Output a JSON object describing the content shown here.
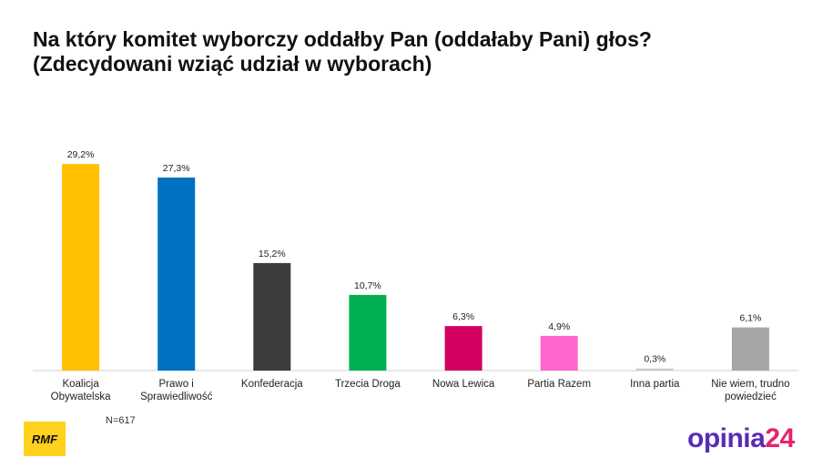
{
  "title": {
    "line1": "Na który komitet wyborczy oddałby Pan (oddałaby Pani) głos?",
    "line2": "(Zdecydowani wziąć udział w wyborach)"
  },
  "note": "N=617",
  "logos": {
    "left": "RMF",
    "right_part1": "opinia",
    "right_part2": "24"
  },
  "chart_data": {
    "type": "bar",
    "categories": [
      [
        "Koalicja",
        "Obywatelska"
      ],
      [
        "Prawo i",
        "Sprawiedliwość"
      ],
      [
        "Konfederacja"
      ],
      [
        "Trzecia Droga"
      ],
      [
        "Nowa Lewica"
      ],
      [
        "Partia Razem"
      ],
      [
        "Inna partia"
      ],
      [
        "Nie wiem, trudno",
        "powiedzieć"
      ]
    ],
    "values": [
      29.2,
      27.3,
      15.2,
      10.7,
      6.3,
      4.9,
      0.3,
      6.1
    ],
    "value_labels": [
      "29,2%",
      "27,3%",
      "15,2%",
      "10,7%",
      "6,3%",
      "4,9%",
      "0,3%",
      "6,1%"
    ],
    "colors": [
      "#ffc000",
      "#0070c0",
      "#3c3c3c",
      "#00b050",
      "#d4005f",
      "#ff66cc",
      "#cccccc",
      "#a6a6a6"
    ],
    "ylim": [
      0,
      30
    ],
    "grid": false,
    "legend": "none"
  }
}
